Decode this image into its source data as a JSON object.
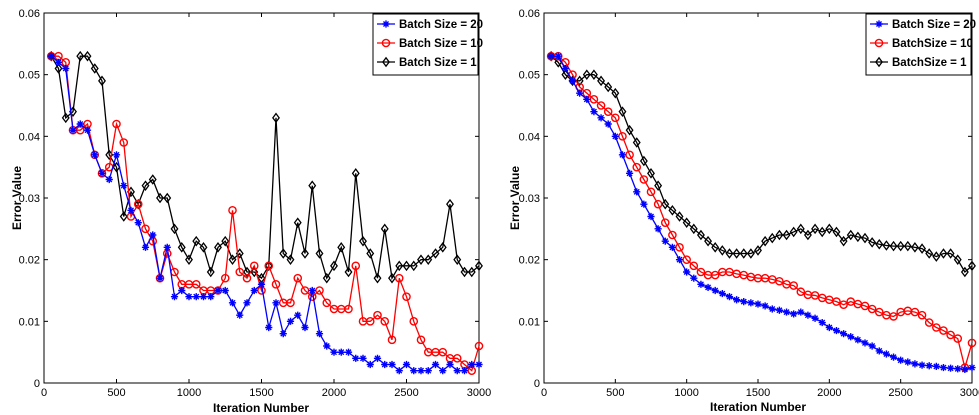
{
  "chart_data": [
    {
      "type": "line",
      "xlabel": "Iteration Number",
      "ylabel": "Error Value",
      "xlim": [
        0,
        3000
      ],
      "ylim": [
        0,
        0.06
      ],
      "xticks": [
        "0",
        "500",
        "1000",
        "1500",
        "2000",
        "2500",
        "3000"
      ],
      "yticks": [
        "0",
        "0.01",
        "0.02",
        "0.03",
        "0.04",
        "0.05",
        "0.06"
      ],
      "grid": false,
      "legend_position": "top-right",
      "x": [
        50,
        100,
        150,
        200,
        250,
        300,
        350,
        400,
        450,
        500,
        550,
        600,
        650,
        700,
        750,
        800,
        850,
        900,
        950,
        1000,
        1050,
        1100,
        1150,
        1200,
        1250,
        1300,
        1350,
        1400,
        1450,
        1500,
        1550,
        1600,
        1650,
        1700,
        1750,
        1800,
        1850,
        1900,
        1950,
        2000,
        2050,
        2100,
        2150,
        2200,
        2250,
        2300,
        2350,
        2400,
        2450,
        2500,
        2550,
        2600,
        2650,
        2700,
        2750,
        2800,
        2850,
        2900,
        2950,
        3000
      ],
      "series": [
        {
          "name": "Batch Size = 20",
          "color": "#0000ff",
          "marker": "asterisk",
          "values": [
            0.053,
            0.052,
            0.051,
            0.041,
            0.042,
            0.041,
            0.037,
            0.034,
            0.033,
            0.037,
            0.032,
            0.028,
            0.026,
            0.022,
            0.024,
            0.017,
            0.022,
            0.014,
            0.015,
            0.014,
            0.014,
            0.014,
            0.014,
            0.015,
            0.015,
            0.013,
            0.011,
            0.013,
            0.015,
            0.016,
            0.009,
            0.013,
            0.008,
            0.01,
            0.011,
            0.009,
            0.015,
            0.008,
            0.006,
            0.005,
            0.005,
            0.005,
            0.004,
            0.004,
            0.003,
            0.004,
            0.003,
            0.003,
            0.002,
            0.003,
            0.002,
            0.002,
            0.002,
            0.003,
            0.002,
            0.003,
            0.002,
            0.002,
            0.003,
            0.003
          ]
        },
        {
          "name": "Batch Size = 10",
          "color": "#ff0000",
          "marker": "circle",
          "values": [
            0.053,
            0.053,
            0.052,
            0.041,
            0.041,
            0.042,
            0.037,
            0.034,
            0.035,
            0.042,
            0.039,
            0.027,
            0.029,
            0.025,
            0.023,
            0.017,
            0.021,
            0.018,
            0.016,
            0.016,
            0.016,
            0.015,
            0.015,
            0.015,
            0.017,
            0.028,
            0.018,
            0.017,
            0.019,
            0.015,
            0.019,
            0.016,
            0.013,
            0.013,
            0.017,
            0.015,
            0.014,
            0.015,
            0.013,
            0.012,
            0.012,
            0.012,
            0.019,
            0.01,
            0.01,
            0.011,
            0.01,
            0.007,
            0.017,
            0.014,
            0.01,
            0.007,
            0.005,
            0.005,
            0.005,
            0.004,
            0.004,
            0.003,
            0.002,
            0.006
          ]
        },
        {
          "name": "Batch Size = 1",
          "color": "#000000",
          "marker": "diamond",
          "values": [
            0.053,
            0.051,
            0.043,
            0.044,
            0.053,
            0.053,
            0.051,
            0.049,
            0.037,
            0.035,
            0.027,
            0.031,
            0.029,
            0.032,
            0.033,
            0.03,
            0.03,
            0.025,
            0.022,
            0.02,
            0.023,
            0.022,
            0.018,
            0.022,
            0.023,
            0.02,
            0.021,
            0.018,
            0.018,
            0.017,
            0.019,
            0.043,
            0.021,
            0.02,
            0.026,
            0.021,
            0.032,
            0.021,
            0.017,
            0.019,
            0.022,
            0.018,
            0.034,
            0.023,
            0.021,
            0.017,
            0.025,
            0.017,
            0.019,
            0.019,
            0.019,
            0.02,
            0.02,
            0.021,
            0.022,
            0.029,
            0.02,
            0.018,
            0.018,
            0.019
          ]
        }
      ]
    },
    {
      "type": "line",
      "xlabel": "Iteration Number",
      "ylabel": "Error Value",
      "xlim": [
        0,
        3000
      ],
      "ylim": [
        0,
        0.06
      ],
      "xticks": [
        "0",
        "500",
        "1000",
        "1500",
        "2000",
        "2500",
        "3000"
      ],
      "yticks": [
        "0",
        "0.01",
        "0.02",
        "0.03",
        "0.04",
        "0.05",
        "0.06"
      ],
      "grid": false,
      "legend_position": "top-right",
      "x": [
        50,
        100,
        150,
        200,
        250,
        300,
        350,
        400,
        450,
        500,
        550,
        600,
        650,
        700,
        750,
        800,
        850,
        900,
        950,
        1000,
        1050,
        1100,
        1150,
        1200,
        1250,
        1300,
        1350,
        1400,
        1450,
        1500,
        1550,
        1600,
        1650,
        1700,
        1750,
        1800,
        1850,
        1900,
        1950,
        2000,
        2050,
        2100,
        2150,
        2200,
        2250,
        2300,
        2350,
        2400,
        2450,
        2500,
        2550,
        2600,
        2650,
        2700,
        2750,
        2800,
        2850,
        2900,
        2950,
        3000
      ],
      "series": [
        {
          "name": "Batch Size = 20",
          "color": "#0000ff",
          "marker": "asterisk",
          "values": [
            0.053,
            0.053,
            0.051,
            0.049,
            0.047,
            0.046,
            0.044,
            0.043,
            0.042,
            0.04,
            0.037,
            0.034,
            0.031,
            0.029,
            0.027,
            0.025,
            0.023,
            0.022,
            0.02,
            0.018,
            0.017,
            0.016,
            0.0155,
            0.015,
            0.0145,
            0.014,
            0.0135,
            0.0132,
            0.013,
            0.0128,
            0.0125,
            0.012,
            0.0118,
            0.0115,
            0.0112,
            0.0115,
            0.011,
            0.0105,
            0.0098,
            0.009,
            0.0085,
            0.008,
            0.0075,
            0.007,
            0.0065,
            0.006,
            0.0052,
            0.0047,
            0.0042,
            0.0037,
            0.0034,
            0.0031,
            0.0029,
            0.0028,
            0.0027,
            0.0025,
            0.0024,
            0.0023,
            0.0022,
            0.0025
          ]
        },
        {
          "name": "BatchSize = 10",
          "color": "#ff0000",
          "marker": "circle",
          "values": [
            0.053,
            0.053,
            0.052,
            0.05,
            0.048,
            0.047,
            0.046,
            0.045,
            0.044,
            0.043,
            0.04,
            0.037,
            0.035,
            0.033,
            0.031,
            0.029,
            0.026,
            0.024,
            0.022,
            0.02,
            0.019,
            0.018,
            0.0175,
            0.0175,
            0.018,
            0.018,
            0.0177,
            0.0175,
            0.0172,
            0.017,
            0.017,
            0.0168,
            0.0165,
            0.016,
            0.0158,
            0.0148,
            0.0143,
            0.0142,
            0.0138,
            0.0135,
            0.0132,
            0.0127,
            0.0132,
            0.0128,
            0.0125,
            0.012,
            0.0115,
            0.011,
            0.0108,
            0.0115,
            0.0117,
            0.0115,
            0.011,
            0.0098,
            0.009,
            0.0085,
            0.0078,
            0.0072,
            0.0025,
            0.0065
          ]
        },
        {
          "name": "BatchSize = 1",
          "color": "#000000",
          "marker": "diamond",
          "values": [
            0.053,
            0.052,
            0.05,
            0.049,
            0.049,
            0.05,
            0.05,
            0.049,
            0.048,
            0.047,
            0.044,
            0.041,
            0.039,
            0.036,
            0.034,
            0.032,
            0.029,
            0.028,
            0.027,
            0.026,
            0.025,
            0.024,
            0.023,
            0.022,
            0.0215,
            0.021,
            0.021,
            0.021,
            0.021,
            0.0215,
            0.023,
            0.0235,
            0.024,
            0.024,
            0.0245,
            0.025,
            0.024,
            0.025,
            0.0245,
            0.025,
            0.0245,
            0.023,
            0.024,
            0.0237,
            0.0235,
            0.0228,
            0.0225,
            0.0223,
            0.0222,
            0.0222,
            0.0222,
            0.022,
            0.0218,
            0.021,
            0.0205,
            0.021,
            0.021,
            0.02,
            0.018,
            0.019
          ]
        }
      ]
    }
  ]
}
